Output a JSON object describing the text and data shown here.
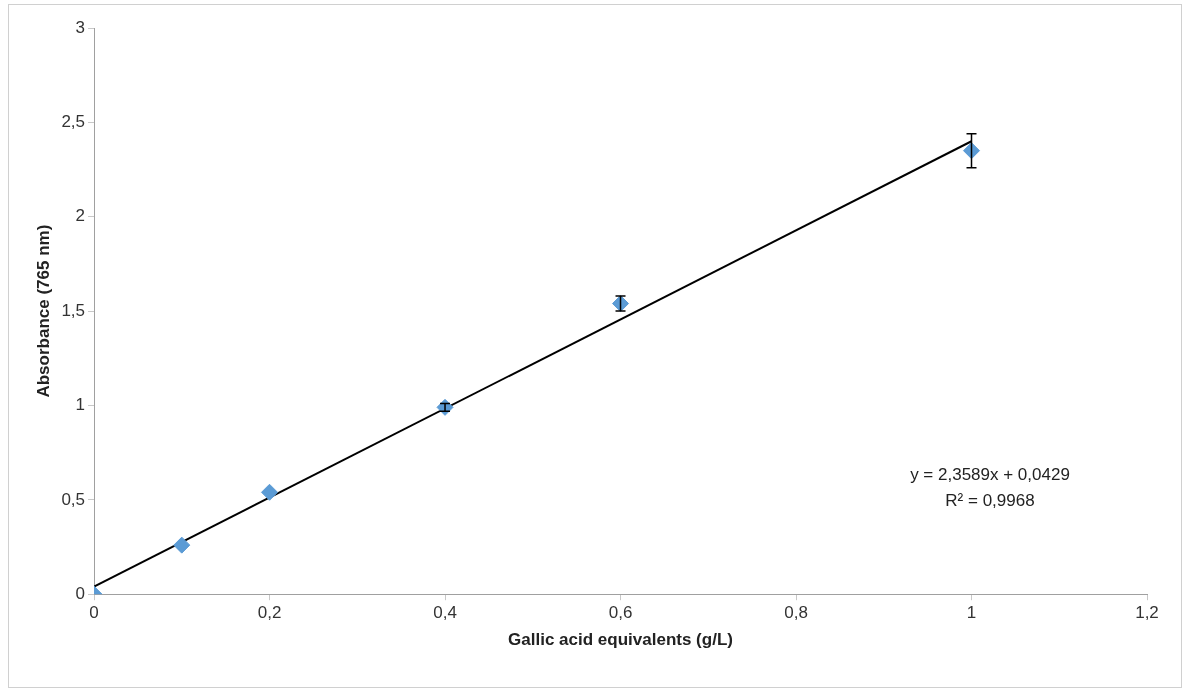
{
  "chart_data": {
    "type": "scatter",
    "xlabel": "Gallic acid equivalents (g/L)",
    "ylabel": "Absorbance (765 nm)",
    "series": [
      {
        "color": "#5b9bd5",
        "marker": "diamond",
        "x": [
          0,
          0.1,
          0.2,
          0.4,
          0.6,
          1
        ],
        "values": [
          0,
          0.26,
          0.54,
          0.99,
          1.54,
          2.35
        ],
        "errors": [
          null,
          null,
          null,
          0.02,
          0.04,
          0.09
        ]
      },
      {
        "type": "line",
        "marker": "none",
        "color": "#000000",
        "x": [
          0,
          1
        ],
        "values": [
          0.04,
          2.4
        ]
      }
    ],
    "grid": false,
    "legend": false,
    "xlim": [
      0,
      1.2
    ],
    "xticks": [
      0,
      {
        "value": 0.2,
        "label": "0,2"
      },
      {
        "value": 0.4,
        "label": "0,4"
      },
      {
        "value": 0.6,
        "label": "0,6"
      },
      {
        "value": 0.8,
        "label": "0,8"
      },
      1,
      {
        "value": 1.2,
        "label": "1,2"
      }
    ],
    "ylim": [
      0,
      3
    ],
    "yticks": [
      0,
      {
        "value": 0.5,
        "label": "0,5"
      },
      1,
      {
        "value": 1.5,
        "label": "1,5"
      },
      2,
      {
        "value": 2.5,
        "label": "2,5"
      },
      3
    ],
    "annotations": [
      "y = 2,3589x + 0,0429",
      "R² = 0,9968"
    ]
  }
}
